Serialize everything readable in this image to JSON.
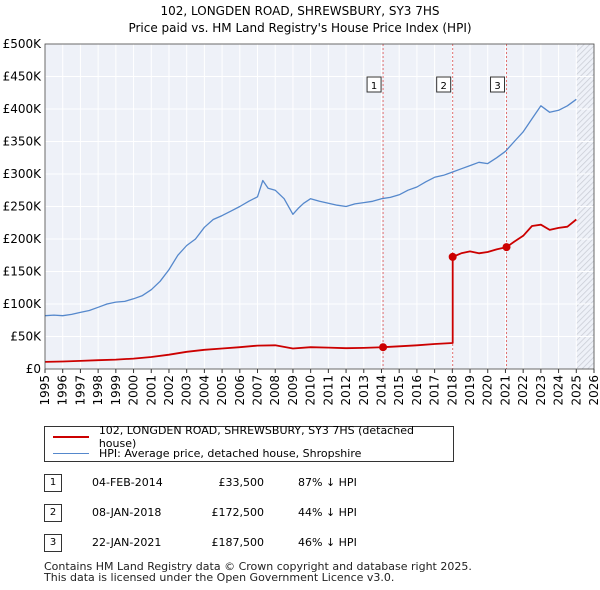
{
  "chart_data": {
    "type": "line",
    "title": "102, LONGDEN ROAD, SHREWSBURY, SY3 7HS",
    "subtitle": "Price paid vs. HM Land Registry's House Price Index (HPI)",
    "xlabel": "",
    "ylabel": "",
    "xlim": [
      1995,
      2026
    ],
    "ylim": [
      0,
      500000
    ],
    "yticks": [
      0,
      50000,
      100000,
      150000,
      200000,
      250000,
      300000,
      350000,
      400000,
      450000,
      500000
    ],
    "ytick_labels": [
      "£0",
      "£50K",
      "£100K",
      "£150K",
      "£200K",
      "£250K",
      "£300K",
      "£350K",
      "£400K",
      "£450K",
      "£500K"
    ],
    "xtick_labels": [
      "1995",
      "1996",
      "1997",
      "1998",
      "1999",
      "2000",
      "2001",
      "2002",
      "2003",
      "2004",
      "2005",
      "2006",
      "2007",
      "2008",
      "2009",
      "2010",
      "2011",
      "2012",
      "2013",
      "2014",
      "2015",
      "2016",
      "2017",
      "2018",
      "2019",
      "2020",
      "2021",
      "2022",
      "2023",
      "2024",
      "2025",
      "2026"
    ],
    "grid": true,
    "series": [
      {
        "name": "102, LONGDEN ROAD, SHREWSBURY, SY3 7HS (detached house)",
        "color": "#cc0000",
        "x": [
          1995.0,
          1996.0,
          1997.0,
          1998.0,
          1999.0,
          2000.0,
          2001.0,
          2002.0,
          2003.0,
          2004.0,
          2005.0,
          2006.0,
          2007.0,
          2008.0,
          2009.0,
          2010.0,
          2011.0,
          2012.0,
          2013.0,
          2014.09,
          2015.0,
          2016.0,
          2017.0,
          2018.02,
          2018.02,
          2018.5,
          2019.0,
          2019.5,
          2020.0,
          2020.5,
          2021.06,
          2021.5,
          2022.0,
          2022.5,
          2023.0,
          2023.5,
          2024.0,
          2024.5,
          2025.0
        ],
        "y": [
          11000,
          11500,
          12500,
          13500,
          14500,
          16000,
          18500,
          22000,
          26500,
          29500,
          31500,
          33500,
          36000,
          36500,
          31500,
          33500,
          33000,
          32000,
          32500,
          33500,
          35000,
          36500,
          38500,
          40000,
          172500,
          178000,
          181000,
          178000,
          180000,
          184000,
          187500,
          196000,
          205000,
          220000,
          222000,
          214000,
          217000,
          219000,
          230000
        ]
      },
      {
        "name": "HPI: Average price, detached house, Shropshire",
        "color": "#5588cc",
        "x": [
          1995.0,
          1995.5,
          1996.0,
          1996.5,
          1997.0,
          1997.5,
          1998.0,
          1998.5,
          1999.0,
          1999.5,
          2000.0,
          2000.5,
          2001.0,
          2001.5,
          2002.0,
          2002.5,
          2003.0,
          2003.5,
          2004.0,
          2004.5,
          2005.0,
          2005.5,
          2006.0,
          2006.5,
          2007.0,
          2007.3,
          2007.6,
          2008.0,
          2008.5,
          2009.0,
          2009.3,
          2009.6,
          2010.0,
          2010.5,
          2011.0,
          2011.5,
          2012.0,
          2012.5,
          2013.0,
          2013.5,
          2014.0,
          2014.5,
          2015.0,
          2015.5,
          2016.0,
          2016.5,
          2017.0,
          2017.5,
          2018.0,
          2018.5,
          2019.0,
          2019.5,
          2020.0,
          2020.5,
          2021.0,
          2021.5,
          2022.0,
          2022.5,
          2023.0,
          2023.5,
          2024.0,
          2024.5,
          2025.0
        ],
        "y": [
          82000,
          83000,
          82000,
          84000,
          87000,
          90000,
          95000,
          100000,
          103000,
          104000,
          108000,
          113000,
          122000,
          135000,
          153000,
          175000,
          190000,
          200000,
          218000,
          230000,
          236000,
          243000,
          250000,
          258000,
          265000,
          290000,
          278000,
          275000,
          262000,
          238000,
          247000,
          255000,
          262000,
          258000,
          255000,
          252000,
          250000,
          254000,
          256000,
          258000,
          262000,
          264000,
          268000,
          275000,
          280000,
          288000,
          295000,
          298000,
          303000,
          308000,
          313000,
          318000,
          316000,
          325000,
          335000,
          350000,
          365000,
          385000,
          405000,
          395000,
          398000,
          405000,
          415000
        ]
      }
    ],
    "sales": [
      {
        "label": "1",
        "x": 2014.09,
        "y": 33500
      },
      {
        "label": "2",
        "x": 2018.02,
        "y": 172500
      },
      {
        "label": "3",
        "x": 2021.06,
        "y": 187500
      }
    ],
    "forecast_from": 2025.0
  },
  "legend": [
    {
      "label": "102, LONGDEN ROAD, SHREWSBURY, SY3 7HS (detached house)",
      "color": "#cc0000"
    },
    {
      "label": "HPI: Average price, detached house, Shropshire",
      "color": "#5588cc"
    }
  ],
  "sales_table": [
    {
      "num": "1",
      "date": "04-FEB-2014",
      "price": "£33,500",
      "hpi": "87% ↓ HPI"
    },
    {
      "num": "2",
      "date": "08-JAN-2018",
      "price": "£172,500",
      "hpi": "44% ↓ HPI"
    },
    {
      "num": "3",
      "date": "22-JAN-2021",
      "price": "£187,500",
      "hpi": "46% ↓ HPI"
    }
  ],
  "footer": {
    "line1": "Contains HM Land Registry data © Crown copyright and database right 2025.",
    "line2": "This data is licensed under the Open Government Licence v3.0."
  }
}
